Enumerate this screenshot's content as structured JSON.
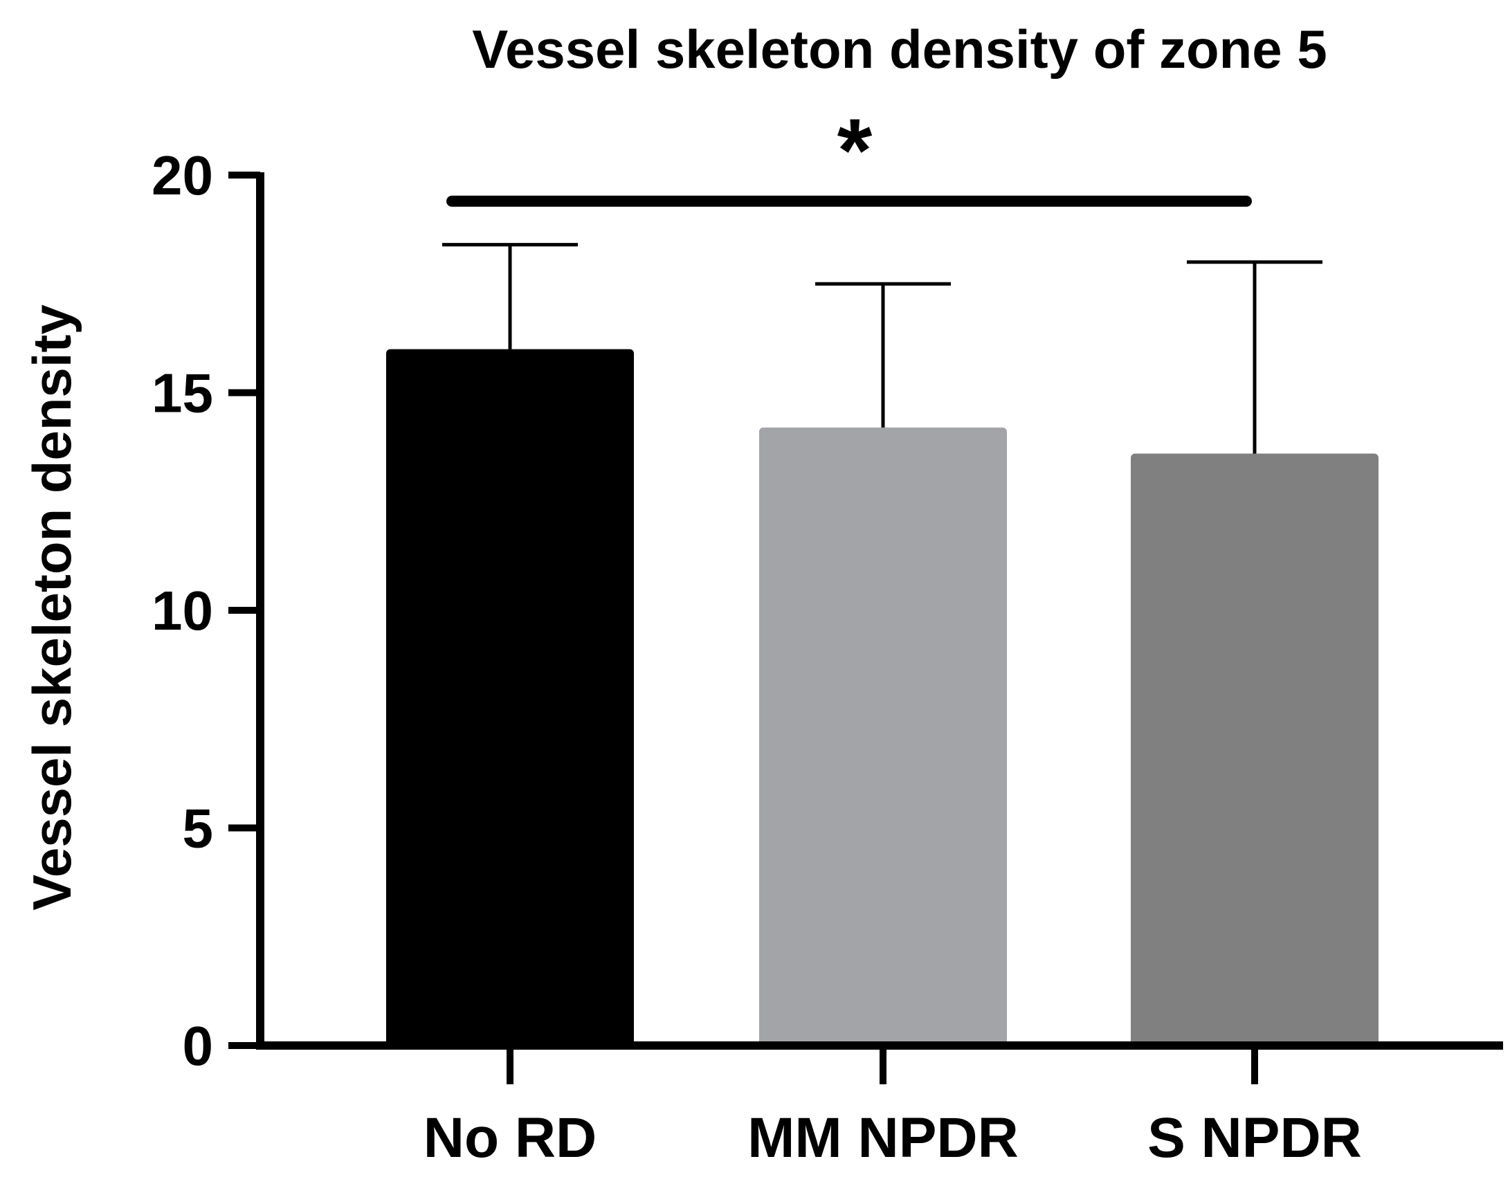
{
  "chart_data": {
    "type": "bar",
    "title": "Vessel skeleton density of zone 5",
    "xlabel": "",
    "ylabel": "Vessel skeleton density",
    "categories": [
      "No RD",
      "MM NPDR",
      "S NPDR"
    ],
    "values": [
      16.0,
      14.2,
      13.6
    ],
    "error_upper": [
      18.4,
      17.5,
      18.0
    ],
    "bar_colors": [
      "#000000",
      "#a3a4a8",
      "#808080"
    ],
    "ylim": [
      0,
      20
    ],
    "yticks": [
      "0",
      "5",
      "10",
      "15",
      "20"
    ],
    "grid": false,
    "significance": {
      "label": "*",
      "from_category": "No RD",
      "to_category": "S NPDR",
      "level": 19.4
    }
  }
}
